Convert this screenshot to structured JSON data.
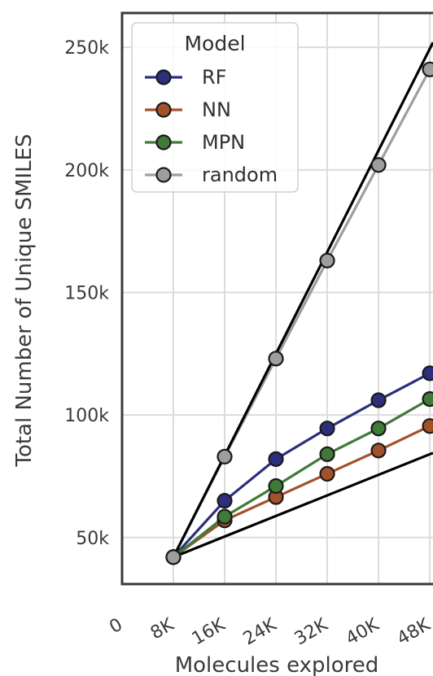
{
  "chart_data": {
    "type": "line",
    "xlabel": "Molecules explored",
    "ylabel": "Total Number of Unique SMILES",
    "x_ticks": [
      0,
      8000,
      16000,
      24000,
      32000,
      40000,
      48000
    ],
    "x_tick_labels": [
      "0",
      "8K",
      "16K",
      "24K",
      "32K",
      "40K",
      "48K"
    ],
    "y_ticks": [
      50000,
      100000,
      150000,
      200000,
      250000
    ],
    "y_tick_labels": [
      "50k",
      "100k",
      "150k",
      "200k",
      "250k"
    ],
    "xlim": [
      0,
      48500
    ],
    "ylim": [
      31000,
      264000
    ],
    "grid": true,
    "legend": {
      "title": "Model",
      "placement": "top-left"
    },
    "x": [
      8000,
      16000,
      24000,
      32000,
      40000,
      48000
    ],
    "series": [
      {
        "name": "RF",
        "color": "#2b2f7c",
        "values": [
          42000,
          65000,
          82000,
          94500,
          106000,
          117000
        ]
      },
      {
        "name": "NN",
        "color": "#a3512a",
        "values": [
          42000,
          57000,
          66500,
          76000,
          85500,
          95500
        ]
      },
      {
        "name": "MPN",
        "color": "#3f7a37",
        "values": [
          42000,
          58500,
          71000,
          84000,
          94500,
          106500
        ]
      },
      {
        "name": "random",
        "color": "#9e9e9e",
        "values": [
          42000,
          83000,
          123000,
          163000,
          202000,
          241000
        ]
      }
    ],
    "reference_lines": [
      {
        "color": "#000000",
        "x": [
          8000,
          48500
        ],
        "values": [
          42000,
          252000
        ]
      },
      {
        "color": "#000000",
        "x": [
          8000,
          48500
        ],
        "values": [
          42000,
          84500
        ]
      }
    ]
  }
}
